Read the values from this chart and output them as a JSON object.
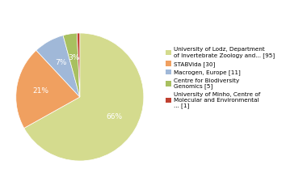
{
  "labels": [
    "University of Lodz, Department\nof Invertebrate Zoology and... [95]",
    "STABVida [30]",
    "Macrogen, Europe [11]",
    "Centre for Biodiversity\nGenomics [5]",
    "University of Minho, Centre of\nMolecular and Environmental\n... [1]"
  ],
  "values": [
    95,
    30,
    11,
    5,
    1
  ],
  "colors": [
    "#d4db8e",
    "#f0a060",
    "#a0b8d8",
    "#a8c060",
    "#c04030"
  ],
  "pct_labels": [
    "66%",
    "21%",
    "7%",
    "3%",
    ""
  ],
  "startangle": 90,
  "background_color": "#ffffff",
  "figsize": [
    3.8,
    2.4
  ],
  "dpi": 100
}
